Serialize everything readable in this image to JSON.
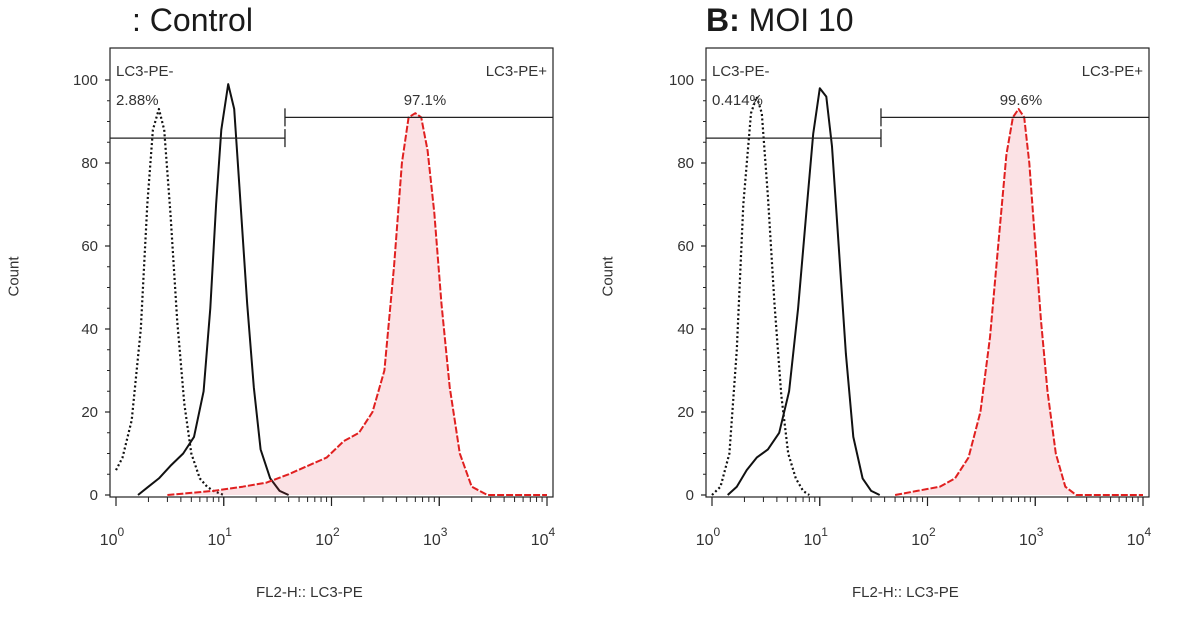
{
  "chart_data": [
    {
      "type": "area",
      "title_letter": "",
      "title_text": ": Control",
      "xlabel": "FL2-H:: LC3-PE",
      "ylabel": "Count",
      "xscale": "log",
      "xlim": [
        1,
        10000
      ],
      "ylim": [
        0,
        100
      ],
      "yticks": [
        0,
        20,
        40,
        60,
        80,
        100
      ],
      "xticks": [
        1,
        10,
        100,
        1000,
        10000
      ],
      "xtick_base": "10",
      "xtick_exp": [
        "0",
        "1",
        "2",
        "3",
        "4"
      ],
      "gates": [
        {
          "name": "LC3-PE-",
          "percent": "2.88%",
          "x_range": [
            1,
            37
          ],
          "y": 86
        },
        {
          "name": "LC3-PE+",
          "percent": "97.1%",
          "x_range": [
            37,
            10000
          ],
          "y": 91
        }
      ],
      "series": [
        {
          "style": "dotted",
          "color": "#111111",
          "filled": false,
          "points": [
            [
              1,
              6
            ],
            [
              1.15,
              9
            ],
            [
              1.4,
              18
            ],
            [
              1.7,
              40
            ],
            [
              1.95,
              70
            ],
            [
              2.2,
              88
            ],
            [
              2.5,
              93
            ],
            [
              2.8,
              88
            ],
            [
              3.2,
              68
            ],
            [
              3.7,
              42
            ],
            [
              4.3,
              22
            ],
            [
              5,
              10
            ],
            [
              6,
              4
            ],
            [
              7,
              2
            ],
            [
              8,
              1
            ],
            [
              10,
              0
            ]
          ]
        },
        {
          "style": "solid",
          "color": "#111111",
          "filled": false,
          "points": [
            [
              1.6,
              0
            ],
            [
              2,
              2
            ],
            [
              2.5,
              4
            ],
            [
              3.2,
              7
            ],
            [
              4.2,
              10
            ],
            [
              5.3,
              14
            ],
            [
              6.5,
              25
            ],
            [
              7.5,
              45
            ],
            [
              8.5,
              70
            ],
            [
              9.5,
              88
            ],
            [
              11,
              99
            ],
            [
              12.5,
              93
            ],
            [
              14,
              74
            ],
            [
              16.5,
              46
            ],
            [
              19,
              26
            ],
            [
              22,
              11
            ],
            [
              27,
              4
            ],
            [
              33,
              1
            ],
            [
              40,
              0
            ]
          ]
        },
        {
          "style": "dashed",
          "color": "#e02020",
          "filled": true,
          "fill": "rgba(230,60,80,0.15)",
          "points": [
            [
              3,
              0
            ],
            [
              8,
              1
            ],
            [
              15,
              2
            ],
            [
              25,
              3
            ],
            [
              40,
              5
            ],
            [
              60,
              7
            ],
            [
              90,
              9
            ],
            [
              130,
              13
            ],
            [
              180,
              15
            ],
            [
              240,
              20
            ],
            [
              310,
              30
            ],
            [
              380,
              55
            ],
            [
              450,
              80
            ],
            [
              520,
              91
            ],
            [
              600,
              92
            ],
            [
              680,
              91
            ],
            [
              780,
              83
            ],
            [
              900,
              68
            ],
            [
              1050,
              46
            ],
            [
              1250,
              26
            ],
            [
              1550,
              10
            ],
            [
              2000,
              2
            ],
            [
              2800,
              0
            ],
            [
              10000,
              0
            ]
          ]
        }
      ]
    },
    {
      "type": "area",
      "title_letter": "B:",
      "title_text": "MOI 10",
      "xlabel": "FL2-H:: LC3-PE",
      "ylabel": "Count",
      "xscale": "log",
      "xlim": [
        1,
        10000
      ],
      "ylim": [
        0,
        100
      ],
      "yticks": [
        0,
        20,
        40,
        60,
        80,
        100
      ],
      "xticks": [
        1,
        10,
        100,
        1000,
        10000
      ],
      "xtick_base": "10",
      "xtick_exp": [
        "0",
        "1",
        "2",
        "3",
        "4"
      ],
      "gates": [
        {
          "name": "LC3-PE-",
          "percent": "0.414%",
          "x_range": [
            1,
            37
          ],
          "y": 86
        },
        {
          "name": "LC3-PE+",
          "percent": "99.6%",
          "x_range": [
            37,
            10000
          ],
          "y": 91
        }
      ],
      "series": [
        {
          "style": "dotted",
          "color": "#111111",
          "filled": false,
          "points": [
            [
              1,
              0
            ],
            [
              1.2,
              2
            ],
            [
              1.45,
              10
            ],
            [
              1.7,
              35
            ],
            [
              1.95,
              70
            ],
            [
              2.3,
              92
            ],
            [
              2.6,
              96
            ],
            [
              2.9,
              92
            ],
            [
              3.3,
              72
            ],
            [
              3.8,
              46
            ],
            [
              4.4,
              24
            ],
            [
              5.1,
              10
            ],
            [
              6,
              4
            ],
            [
              7,
              1
            ],
            [
              8,
              0
            ]
          ]
        },
        {
          "style": "solid",
          "color": "#111111",
          "filled": false,
          "points": [
            [
              1.4,
              0
            ],
            [
              1.7,
              2
            ],
            [
              2.1,
              6
            ],
            [
              2.6,
              9
            ],
            [
              3.3,
              11
            ],
            [
              4.2,
              15
            ],
            [
              5.2,
              25
            ],
            [
              6.3,
              45
            ],
            [
              7.5,
              68
            ],
            [
              8.7,
              87
            ],
            [
              10,
              98
            ],
            [
              11.5,
              96
            ],
            [
              13,
              84
            ],
            [
              15,
              60
            ],
            [
              17.5,
              34
            ],
            [
              20.5,
              14
            ],
            [
              25,
              4
            ],
            [
              30,
              1
            ],
            [
              36,
              0
            ]
          ]
        },
        {
          "style": "dashed",
          "color": "#e02020",
          "filled": true,
          "fill": "rgba(230,60,80,0.15)",
          "points": [
            [
              50,
              0
            ],
            [
              80,
              1
            ],
            [
              130,
              2
            ],
            [
              180,
              4
            ],
            [
              240,
              9
            ],
            [
              310,
              20
            ],
            [
              380,
              38
            ],
            [
              460,
              62
            ],
            [
              540,
              82
            ],
            [
              620,
              91
            ],
            [
              700,
              93
            ],
            [
              790,
              91
            ],
            [
              880,
              80
            ],
            [
              990,
              62
            ],
            [
              1130,
              42
            ],
            [
              1300,
              25
            ],
            [
              1550,
              10
            ],
            [
              1900,
              2
            ],
            [
              2400,
              0
            ],
            [
              10000,
              0
            ]
          ]
        }
      ]
    }
  ]
}
